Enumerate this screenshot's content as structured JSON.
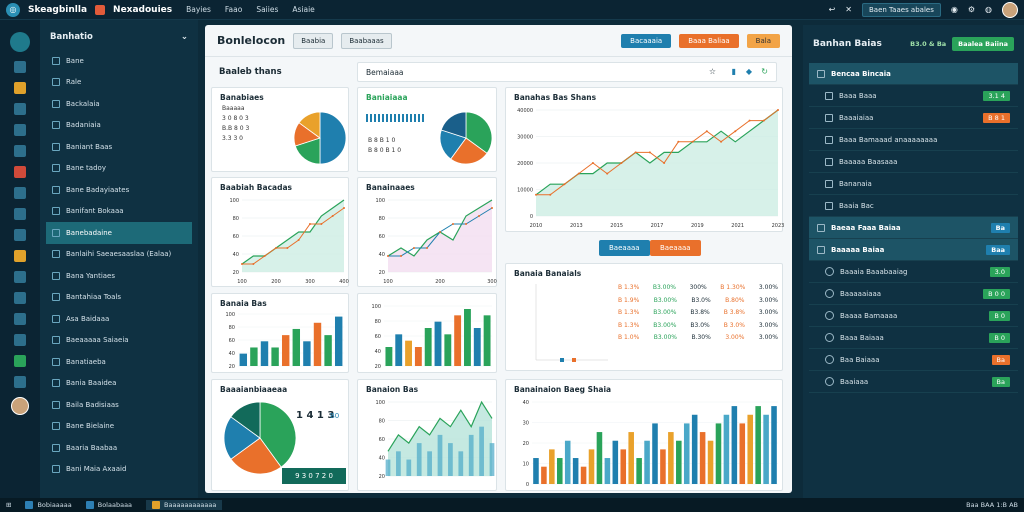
{
  "topbar": {
    "brand": "Skeagbinlla",
    "app_title": "Nexadouies",
    "menu": [
      "Bayies",
      "Faao",
      "Saiies",
      "Asiaie"
    ],
    "task_button": "Baen Taaes abales"
  },
  "sidebar": {
    "title": "Banhatio",
    "items": [
      "Bane",
      "Rale",
      "Backalaia",
      "Badaniaia",
      "Baniant Baas",
      "Bane tadoy",
      "Bane Badayiaates",
      "Banifant Bokaaa",
      "Banebadaine",
      "Banlaihi Saeaesaaslaa (Ealaa)",
      "Bana Yantiaes",
      "Bantahiaa Toals",
      "Asa Baidaaa",
      "Baeaaaaa Saiaeia",
      "Banatiaeba",
      "Bania Baaidea",
      "Baila Badisiaas",
      "Bane Bielaine",
      "Baaria Baabaa",
      "Bani Maia Axaaid"
    ]
  },
  "main": {
    "title": "Bonlelocon",
    "tabs": [
      "Baabia",
      "Baabaaas"
    ],
    "buttons": [
      "Bacaaaia",
      "Baaa Baliaa",
      "Bala"
    ],
    "section_left": "Baaleb thans",
    "section_right": "Bemaiaaa",
    "panel_a_title": "Banabiaes",
    "panel_a_values": [
      "Baaaaa",
      "3 0  8 0 3",
      "B.B   8 0 3",
      "3.3 3 0"
    ],
    "panel_b_title": "Baniaiaaa",
    "panel_b_values": [
      "B 8  B 1 0",
      "B 8 0  B 1 0"
    ],
    "panel_c_title": "Banahas Bas Shans",
    "panel_d_title": "Baabiah Bacadas",
    "panel_e_title": "Banainaaes",
    "panel_f_title": "Banaia Bas",
    "panel_g_title": "Baaaianbiaaeaa",
    "panel_g_value": "1 4 1 3",
    "panel_g_tag": "B0",
    "panel_g_footer": "9 3 0   7 2 0",
    "panel_h_title": "Banaion Bas",
    "table_title": "Banaia Banaials",
    "mid_buttons": [
      "Baeaaaa",
      "Baeaaaa"
    ],
    "panel_j_title": "Banainaion Baeg Shaia"
  },
  "table": {
    "rows": [
      [
        "B 1.3%",
        "B3.00%",
        "300%",
        "B 1.30%",
        "3.00%"
      ],
      [
        "B 1.9%",
        "B3.00%",
        "B3.0%",
        "B.80%",
        "3.00%"
      ],
      [
        "B 1.3%",
        "B3.00%",
        "B3.8%",
        "B 3.8%",
        "3.00%"
      ],
      [
        "B 1.3%",
        "B3.00%",
        "B3.0%",
        "B 3.0%",
        "3.00%"
      ],
      [
        "B 1.0%",
        "B3.00%",
        "B.30%",
        "3.00%",
        "3.00%"
      ]
    ]
  },
  "right": {
    "title": "Banhan Baias",
    "label": "B3.0 & Ba",
    "button": "Baalea Baiina",
    "rows": [
      {
        "type": "sec",
        "label": "Bencaa Bincaia"
      },
      {
        "label": "Baaa Baaa",
        "badge": "3.1 4",
        "color": "g"
      },
      {
        "label": "Baaaiaiaa",
        "badge": "B 8 1",
        "color": "o"
      },
      {
        "label": "Baaa Bamaaad anaaaaaaaa"
      },
      {
        "label": "Baaaaa Baasaaa"
      },
      {
        "label": "Bananaia"
      },
      {
        "label": "Baaia Bac"
      },
      {
        "type": "sec",
        "label": "Baeaa Faaa Baiaa",
        "badge": "Ba"
      },
      {
        "type": "sec",
        "label": "Baaaaa Baiaa",
        "badge": "Baa"
      },
      {
        "label": "Baaaia Baaabaaiag",
        "badge": "3.0",
        "color": "g"
      },
      {
        "label": "Baaaaaiaaa",
        "badge": "B 0 0",
        "color": "g"
      },
      {
        "label": "Baaaa Bamaaaa",
        "badge": "B 0",
        "color": "g"
      },
      {
        "label": "Baaa Baiaaa",
        "badge": "B 0",
        "color": "g"
      },
      {
        "label": "Baa Baiaaa",
        "badge": "Ba",
        "color": "o"
      },
      {
        "label": "Baaiaaa",
        "badge": "Ba",
        "color": "g"
      }
    ]
  },
  "taskbar": [
    "Bobiaaaaa",
    "Bolaabaaa",
    "Baaaaaaaaaaaa"
  ],
  "taskbar_right": "Baa   BAA   1:B AB",
  "chart_data": [
    {
      "type": "line",
      "id": "c",
      "values": [
        2,
        3,
        3,
        4,
        4,
        5,
        5,
        6,
        5,
        6,
        6,
        7,
        7,
        8,
        7,
        8,
        9,
        10
      ],
      "values2": [
        2,
        2,
        3,
        4,
        5,
        4,
        5,
        6,
        6,
        5,
        7,
        7,
        8,
        7,
        8,
        9,
        9,
        10
      ],
      "y_ticks": [
        "40000",
        "30000",
        "20000",
        "10000",
        "0"
      ],
      "x_ticks": [
        "2010",
        "2013",
        "2015",
        "2017",
        "2019",
        "2021",
        "2023"
      ]
    },
    {
      "type": "line",
      "id": "d",
      "values": [
        1,
        2,
        2,
        3,
        4,
        5,
        5,
        7,
        8,
        9
      ],
      "values2": [
        1,
        1,
        2,
        3,
        3,
        4,
        6,
        6,
        7,
        8
      ],
      "y_ticks": [
        "100",
        "80",
        "60",
        "40",
        "20"
      ],
      "x_ticks": [
        "100",
        "200",
        "300",
        "400"
      ]
    },
    {
      "type": "line",
      "id": "e",
      "values": [
        2,
        3,
        2,
        4,
        5,
        4,
        7,
        8,
        9
      ],
      "values2": [
        2,
        2,
        3,
        3,
        5,
        6,
        6,
        7,
        8
      ],
      "y_ticks": [
        "100",
        "80",
        "60",
        "40",
        "20"
      ],
      "x_ticks": [
        "100",
        "200",
        "300"
      ]
    },
    {
      "type": "bar",
      "id": "f",
      "values": [
        2,
        3,
        4,
        3,
        5,
        6,
        4,
        7,
        5,
        8
      ],
      "colors": [
        "#1f7fae",
        "#2aa35a",
        "#1f7fae",
        "#2aa35a",
        "#e9702b",
        "#2aa35a",
        "#1f7fae",
        "#e9702b",
        "#2aa35a",
        "#1f7fae"
      ],
      "y_ticks": [
        "100",
        "80",
        "60",
        "40",
        "20"
      ]
    },
    {
      "type": "bar",
      "id": "h",
      "values": [
        3,
        5,
        4,
        3,
        6,
        7,
        5,
        8,
        9,
        6,
        8
      ],
      "colors": [
        "#2aa35a",
        "#1f7fae",
        "#e9a12b",
        "#e9702b",
        "#2aa35a",
        "#1f7fae",
        "#2aa35a",
        "#e9702b",
        "#2aa35a",
        "#1f7fae",
        "#2aa35a"
      ],
      "y_ticks": [
        "100",
        "80",
        "60",
        "40",
        "20"
      ]
    },
    {
      "type": "area",
      "id": "i",
      "values": [
        3,
        5,
        4,
        6,
        5,
        7,
        6,
        8,
        6,
        9,
        7
      ],
      "values2": [
        2,
        3,
        2,
        4,
        3,
        5,
        4,
        3,
        5,
        6,
        4
      ],
      "y_ticks": [
        "100",
        "80",
        "60",
        "40",
        "20"
      ]
    },
    {
      "type": "bar",
      "id": "j",
      "values": [
        3,
        2,
        4,
        3,
        5,
        3,
        2,
        4,
        6,
        3,
        5,
        4,
        6,
        3,
        5,
        7,
        4,
        6,
        5,
        7,
        8,
        6,
        5,
        7,
        8,
        9,
        7,
        8,
        9,
        8,
        9
      ],
      "y_ticks": [
        "40",
        "30",
        "20",
        "10",
        "0"
      ]
    },
    {
      "type": "pie",
      "id": "pa",
      "slices": [
        50,
        20,
        15,
        15
      ],
      "colors": [
        "#1f7fae",
        "#2aa35a",
        "#e9702b",
        "#e9a12b"
      ]
    },
    {
      "type": "pie",
      "id": "pb",
      "slices": [
        35,
        25,
        20,
        20
      ],
      "colors": [
        "#2aa35a",
        "#e9702b",
        "#1f7fae",
        "#1a5f8a"
      ]
    },
    {
      "type": "pie",
      "id": "pg",
      "slices": [
        40,
        25,
        20,
        15
      ],
      "colors": [
        "#2aa35a",
        "#e9702b",
        "#1f7fae",
        "#126a5a"
      ]
    }
  ]
}
